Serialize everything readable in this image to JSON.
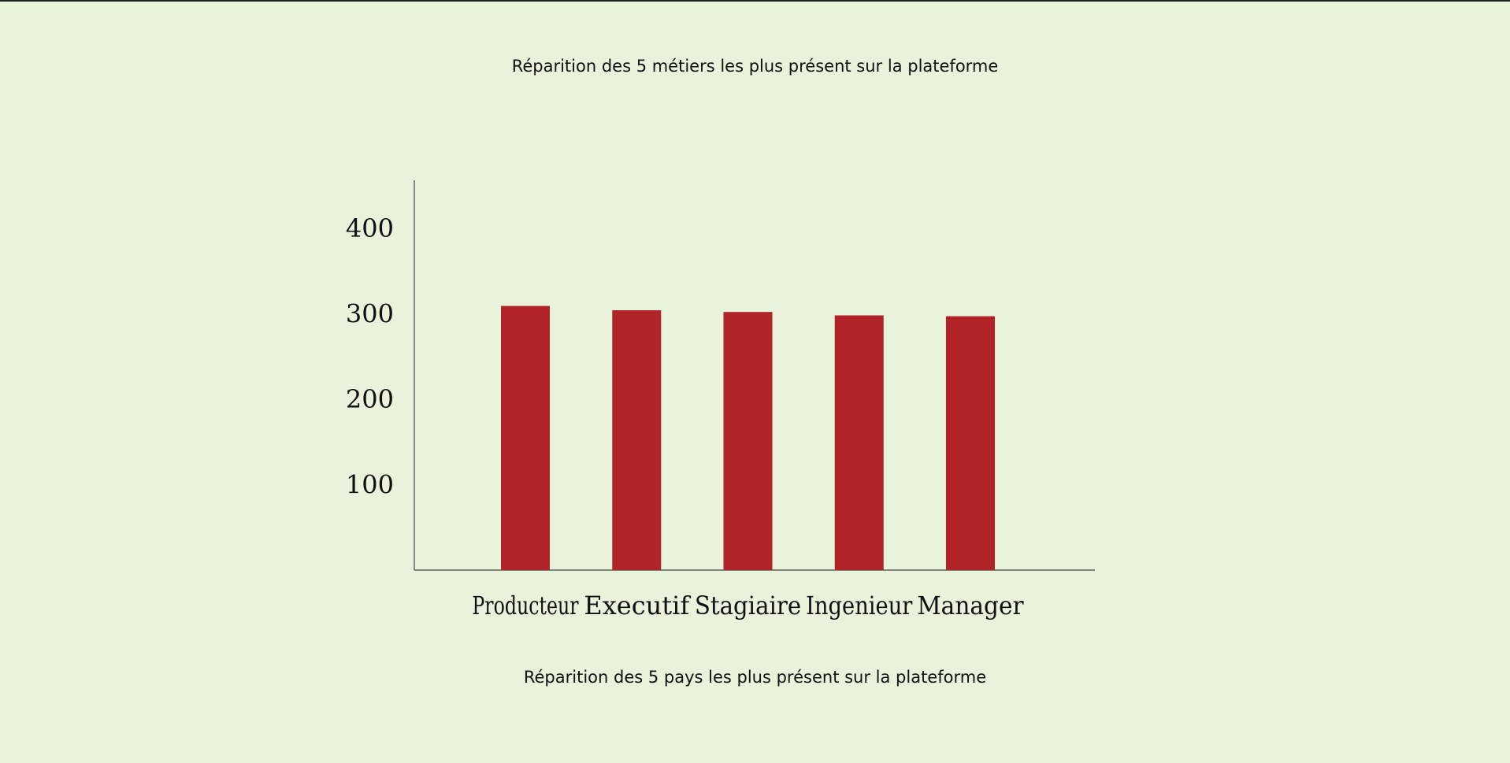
{
  "page": {
    "background": "#e9f2da",
    "next_section_title": "Réparition des 5 pays les plus présent sur la plateforme"
  },
  "chart_data": {
    "type": "bar",
    "title": "Réparition des 5 métiers les plus présent sur la plateforme",
    "categories": [
      "Producteur",
      "Executif",
      "Stagiaire",
      "Ingenieur",
      "Manager"
    ],
    "values": [
      309,
      304,
      302,
      298,
      297
    ],
    "bar_color": "#b02427",
    "xlabel": "",
    "ylabel": "",
    "ylim": [
      0,
      456
    ],
    "yticks": [
      "100",
      "200",
      "300",
      "400"
    ],
    "grid": false,
    "legend": "none"
  }
}
